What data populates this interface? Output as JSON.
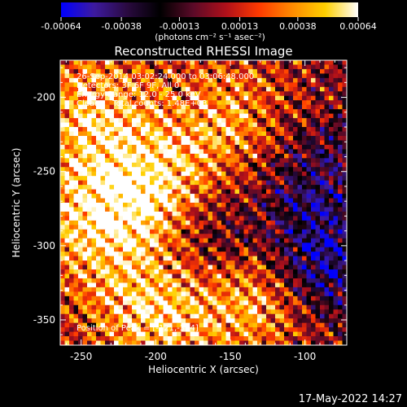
{
  "colorbar": {
    "ticks": [
      "-0.00064",
      "-0.00038",
      "-0.00013",
      "0.00013",
      "0.00038",
      "0.00064"
    ],
    "units": "(photons cm⁻² s⁻¹ asec⁻²)",
    "stops": [
      "#0000ff",
      "#3d1aa0",
      "#2a0a40",
      "#000000",
      "#5a0a28",
      "#b0101a",
      "#ff3a00",
      "#ff8a00",
      "#ffd000",
      "#ffffff"
    ]
  },
  "title": "Reconstructed RHESSI Image",
  "annotations": [
    "26-Sep-2014 03:02:24.000 to 03:06:48.000",
    "Detectors: 3F 6F 9F, All 0",
    "Energy Range: 12.0 - 25.0 keV",
    "Clean     Total counts: 1.48E+03"
  ],
  "peak_label": "Position of Peak = [-121,-334]",
  "footer_timestamp": "17-May-2022 14:27",
  "chart_data": {
    "type": "heatmap",
    "title": "Reconstructed RHESSI Image",
    "xlabel": "Heliocentric X (arcsec)",
    "ylabel": "Heliocentric Y (arcsec)",
    "xlim": [
      -264,
      -72
    ],
    "ylim": [
      -367,
      -175
    ],
    "x_ticks": [
      "-250",
      "-200",
      "-150",
      "-100"
    ],
    "y_ticks": [
      "-200",
      "-250",
      "-300",
      "-350"
    ],
    "colorbar_range": [
      -0.00064,
      0.00064
    ],
    "peak_position": [
      -121,
      -334
    ],
    "hot_regions": [
      {
        "x": -205,
        "y": -265,
        "level": 0.00064
      },
      {
        "x": -245,
        "y": -210,
        "level": 0.0005
      },
      {
        "x": -200,
        "y": -345,
        "level": 0.00055
      },
      {
        "x": -130,
        "y": -330,
        "level": 0.00064
      },
      {
        "x": -150,
        "y": -215,
        "level": 0.0004
      },
      {
        "x": -250,
        "y": -290,
        "level": 0.0004
      }
    ],
    "cold_regions": [
      {
        "x": -95,
        "y": -315,
        "level": -0.00064
      },
      {
        "x": -165,
        "y": -300,
        "level": -0.0004
      },
      {
        "x": -95,
        "y": -250,
        "level": -0.0003
      }
    ]
  }
}
